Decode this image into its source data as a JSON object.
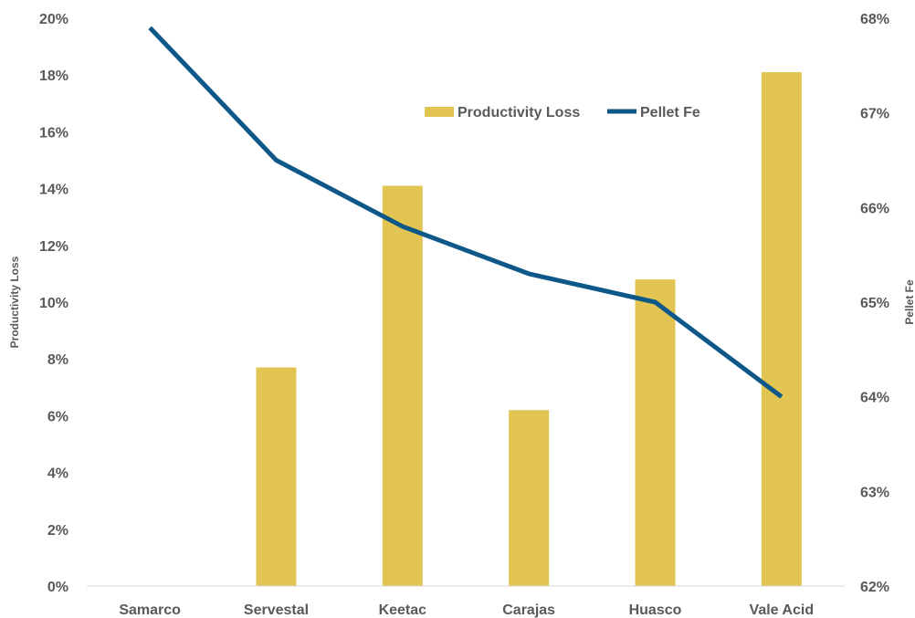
{
  "chart_data": {
    "type": "bar",
    "categories": [
      "Samarco",
      "Servestal",
      "Keetac",
      "Carajas",
      "Huasco",
      "Vale Acid"
    ],
    "series": [
      {
        "name": "Productivity Loss",
        "type": "bar",
        "axis": "left",
        "color": "#E2C452",
        "values": [
          0.0,
          7.7,
          14.1,
          6.2,
          10.8,
          18.1
        ]
      },
      {
        "name": "Pellet Fe",
        "type": "line",
        "axis": "right",
        "color": "#0E5789",
        "values": [
          67.9,
          66.5,
          65.8,
          65.3,
          65.0,
          64.0
        ]
      }
    ],
    "ylabel": "Productivity Loss",
    "y2label": "Pellet Fe",
    "ylim": [
      0,
      20
    ],
    "y2lim": [
      62,
      68
    ],
    "yticks": [
      "0%",
      "2%",
      "4%",
      "6%",
      "8%",
      "10%",
      "12%",
      "14%",
      "16%",
      "18%",
      "20%"
    ],
    "y2ticks": [
      "62%",
      "63%",
      "64%",
      "65%",
      "66%",
      "67%",
      "68%"
    ],
    "legend_position": "top-right",
    "grid": false
  }
}
